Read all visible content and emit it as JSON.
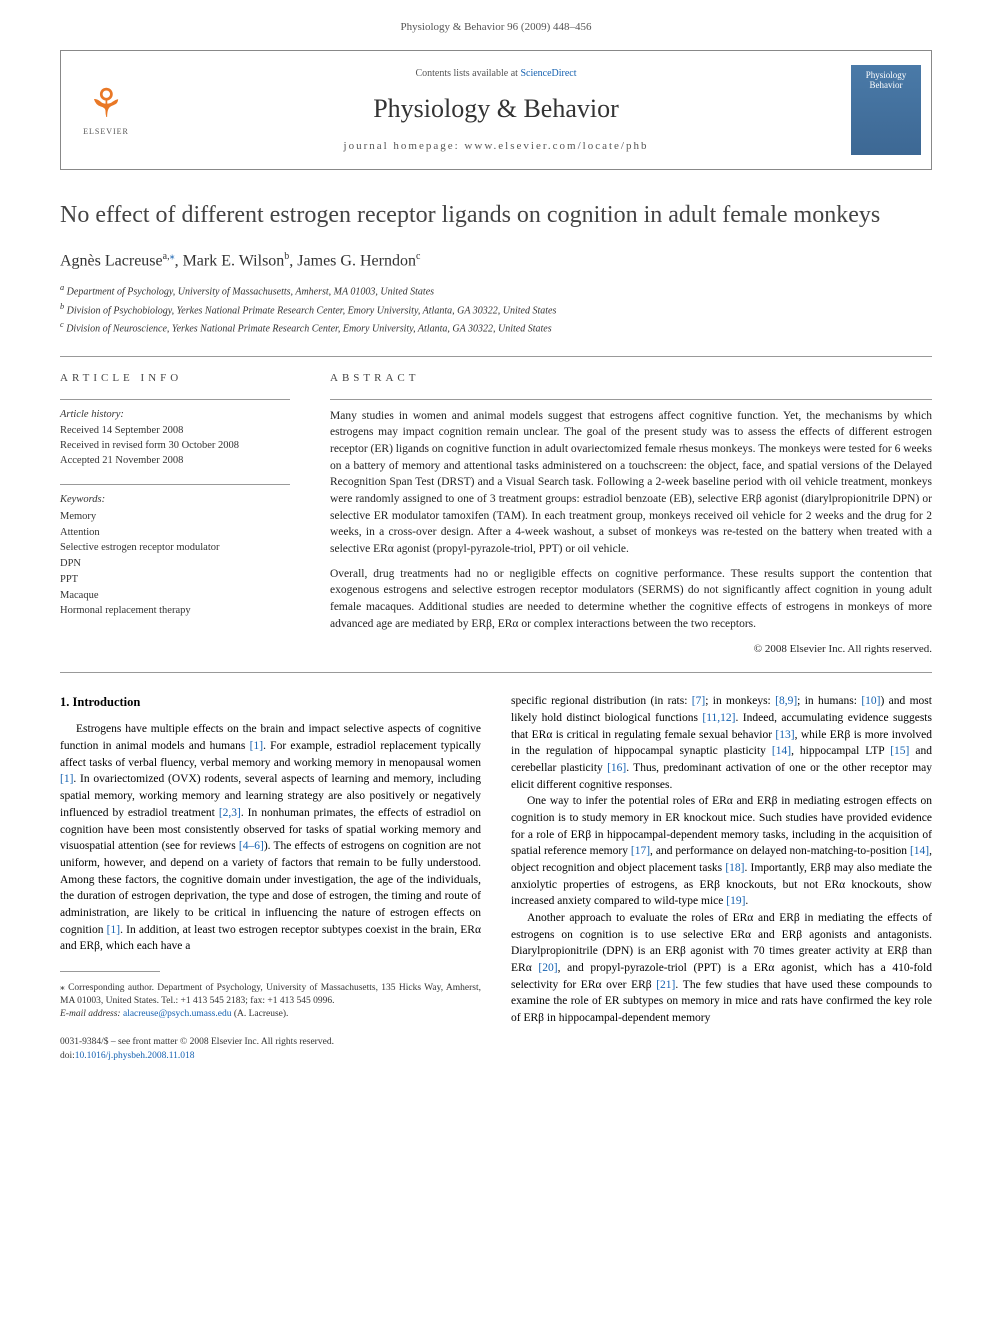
{
  "pageHeader": "Physiology & Behavior 96 (2009) 448–456",
  "banner": {
    "contentsText": "Contents lists available at ",
    "contentsLink": "ScienceDirect",
    "journalTitle": "Physiology & Behavior",
    "homepageLabel": "journal homepage: www.elsevier.com/locate/phb",
    "elsevierLabel": "ELSEVIER",
    "coverTitle": "Physiology Behavior"
  },
  "article": {
    "title": "No effect of different estrogen receptor ligands on cognition in adult female monkeys",
    "authors": [
      {
        "name": "Agnès Lacreuse",
        "markers": "a,",
        "asterisk": "⁎"
      },
      {
        "name": "Mark E. Wilson",
        "markers": "b"
      },
      {
        "name": "James G. Herndon",
        "markers": "c"
      }
    ],
    "affiliations": [
      {
        "marker": "a",
        "text": "Department of Psychology, University of Massachusetts, Amherst, MA 01003, United States"
      },
      {
        "marker": "b",
        "text": "Division of Psychobiology, Yerkes National Primate Research Center, Emory University, Atlanta, GA 30322, United States"
      },
      {
        "marker": "c",
        "text": "Division of Neuroscience, Yerkes National Primate Research Center, Emory University, Atlanta, GA 30322, United States"
      }
    ]
  },
  "infoLabel": "ARTICLE INFO",
  "history": {
    "label": "Article history:",
    "received": "Received 14 September 2008",
    "revised": "Received in revised form 30 October 2008",
    "accepted": "Accepted 21 November 2008"
  },
  "keywordsLabel": "Keywords:",
  "keywords": [
    "Memory",
    "Attention",
    "Selective estrogen receptor modulator",
    "DPN",
    "PPT",
    "Macaque",
    "Hormonal replacement therapy"
  ],
  "abstractLabel": "ABSTRACT",
  "abstract": {
    "p1": "Many studies in women and animal models suggest that estrogens affect cognitive function. Yet, the mechanisms by which estrogens may impact cognition remain unclear. The goal of the present study was to assess the effects of different estrogen receptor (ER) ligands on cognitive function in adult ovariectomized female rhesus monkeys. The monkeys were tested for 6 weeks on a battery of memory and attentional tasks administered on a touchscreen: the object, face, and spatial versions of the Delayed Recognition Span Test (DRST) and a Visual Search task. Following a 2-week baseline period with oil vehicle treatment, monkeys were randomly assigned to one of 3 treatment groups: estradiol benzoate (EB), selective ERβ agonist (diarylpropionitrile DPN) or selective ER modulator tamoxifen (TAM). In each treatment group, monkeys received oil vehicle for 2 weeks and the drug for 2 weeks, in a cross-over design. After a 4-week washout, a subset of monkeys was re-tested on the battery when treated with a selective ERα agonist (propyl-pyrazole-triol, PPT) or oil vehicle.",
    "p2": "Overall, drug treatments had no or negligible effects on cognitive performance. These results support the contention that exogenous estrogens and selective estrogen receptor modulators (SERMS) do not significantly affect cognition in young adult female macaques. Additional studies are needed to determine whether the cognitive effects of estrogens in monkeys of more advanced age are mediated by ERβ, ERα or complex interactions between the two receptors.",
    "copyright": "© 2008 Elsevier Inc. All rights reserved."
  },
  "section1": {
    "heading": "1. Introduction",
    "col1p1a": "Estrogens have multiple effects on the brain and impact selective aspects of cognitive function in animal models and humans ",
    "col1p1b": ". For example, estradiol replacement typically affect tasks of verbal fluency, verbal memory and working memory in menopausal women ",
    "col1p1c": ". In ovariectomized (OVX) rodents, several aspects of learning and memory, including spatial memory, working memory and learning strategy are also positively or negatively influenced by estradiol treatment ",
    "col1p1d": ". In nonhuman primates, the effects of estradiol on cognition have been most consistently observed for tasks of spatial working memory and visuospatial attention (see for reviews ",
    "col1p1e": "). The effects of estrogens on cognition are not uniform, however, and depend on a variety of factors that remain to be fully understood. Among these factors, the cognitive domain under investigation, the age of the individuals, the duration of estrogen deprivation, the type and dose of estrogen, the timing and route of administration, are likely to be critical in influencing the nature of estrogen effects on cognition ",
    "col1p1f": ". In addition, at least two estrogen receptor subtypes coexist in the brain, ERα and ERβ, which each have a",
    "col2p1a": "specific regional distribution (in rats: ",
    "col2p1b": "; in monkeys: ",
    "col2p1c": "; in humans: ",
    "col2p1d": ") and most likely hold distinct biological functions ",
    "col2p1e": ". Indeed, accumulating evidence suggests that ERα is critical in regulating female sexual behavior ",
    "col2p1f": ", while ERβ is more involved in the regulation of hippocampal synaptic plasticity ",
    "col2p1g": ", hippocampal LTP ",
    "col2p1h": " and cerebellar plasticity ",
    "col2p1i": ". Thus, predominant activation of one or the other receptor may elicit different cognitive responses.",
    "col2p2a": "One way to infer the potential roles of ERα and ERβ in mediating estrogen effects on cognition is to study memory in ER knockout mice. Such studies have provided evidence for a role of ERβ in hippocampal-dependent memory tasks, including in the acquisition of spatial reference memory ",
    "col2p2b": ", and performance on delayed non-matching-to-position ",
    "col2p2c": ", object recognition and object placement tasks ",
    "col2p2d": ". Importantly, ERβ may also mediate the anxiolytic properties of estrogens, as ERβ knockouts, but not ERα knockouts, show increased anxiety compared to wild-type mice ",
    "col2p2e": ".",
    "col2p3a": "Another approach to evaluate the roles of ERα and ERβ in mediating the effects of estrogens on cognition is to use selective ERα and ERβ agonists and antagonists. Diarylpropionitrile (DPN) is an ERβ agonist with 70 times greater activity at ERβ than ERα ",
    "col2p3b": ", and propyl-pyrazole-triol (PPT) is a ERα agonist, which has a 410-fold selectivity for ERα over ERβ ",
    "col2p3c": ". The few studies that have used these compounds to examine the role of ER subtypes on memory in mice and rats have confirmed the key role of ERβ in hippocampal-dependent memory"
  },
  "cites": {
    "c1": "[1]",
    "c2_3": "[2,3]",
    "c4_6": "[4–6]",
    "c7": "[7]",
    "c8_9": "[8,9]",
    "c10": "[10]",
    "c11_12": "[11,12]",
    "c13": "[13]",
    "c14": "[14]",
    "c15": "[15]",
    "c16": "[16]",
    "c17": "[17]",
    "c18": "[18]",
    "c19": "[19]",
    "c20": "[20]",
    "c21": "[21]"
  },
  "footnote": {
    "corr": "⁎ Corresponding author. Department of Psychology, University of Massachusetts, 135 Hicks Way, Amherst, MA 01003, United States. Tel.: +1 413 545 2183; fax: +1 413 545 0996.",
    "emailLabel": "E-mail address:",
    "email": "alacreuse@psych.umass.edu",
    "emailSuffix": " (A. Lacreuse)."
  },
  "bottom": {
    "issn": "0031-9384/$ – see front matter © 2008 Elsevier Inc. All rights reserved.",
    "doiLabel": "doi:",
    "doi": "10.1016/j.physbeh.2008.11.018"
  }
}
